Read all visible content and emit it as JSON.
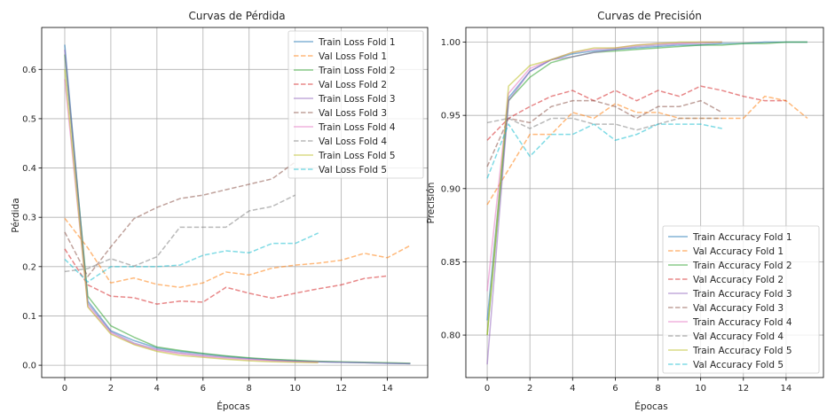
{
  "chart_data": [
    {
      "type": "line",
      "title": "Curvas de Pérdida",
      "xlabel": "Épocas",
      "ylabel": "Pérdida",
      "xlim": [
        -1,
        15.75
      ],
      "ylim": [
        -0.025,
        0.685
      ],
      "xticks": [
        0,
        2,
        4,
        6,
        8,
        10,
        12,
        14
      ],
      "yticks": [
        0.0,
        0.1,
        0.2,
        0.3,
        0.4,
        0.5,
        0.6
      ],
      "ytick_labels": [
        "0.0",
        "0.1",
        "0.2",
        "0.3",
        "0.4",
        "0.5",
        "0.6"
      ],
      "grid": true,
      "legend": "top-right",
      "series": [
        {
          "name": "Train Loss Fold 1",
          "color": "#1f77b4",
          "dash": "solid",
          "x": [
            0,
            1,
            2,
            3,
            4,
            5,
            6,
            7,
            8,
            9,
            10,
            11,
            12,
            13,
            14,
            15
          ],
          "y": [
            0.65,
            0.13,
            0.07,
            0.05,
            0.035,
            0.028,
            0.023,
            0.018,
            0.014,
            0.011,
            0.009,
            0.007,
            0.006,
            0.005,
            0.004,
            0.003
          ]
        },
        {
          "name": "Val Loss Fold 1",
          "color": "#ff7f0e",
          "dash": "dashed",
          "x": [
            0,
            1,
            2,
            3,
            4,
            5,
            6,
            7,
            8,
            9,
            10,
            11,
            12,
            13,
            14,
            15
          ],
          "y": [
            0.298,
            0.238,
            0.167,
            0.177,
            0.164,
            0.158,
            0.167,
            0.189,
            0.183,
            0.197,
            0.203,
            0.207,
            0.213,
            0.227,
            0.218,
            0.243
          ]
        },
        {
          "name": "Train Loss Fold 2",
          "color": "#2ca02c",
          "dash": "solid",
          "x": [
            0,
            1,
            2,
            3,
            4,
            5,
            6,
            7,
            8,
            9,
            10,
            11,
            12,
            13,
            14,
            15
          ],
          "y": [
            0.63,
            0.14,
            0.08,
            0.057,
            0.037,
            0.03,
            0.024,
            0.019,
            0.015,
            0.012,
            0.01,
            0.008,
            0.007,
            0.006,
            0.005,
            0.004
          ]
        },
        {
          "name": "Val Loss Fold 2",
          "color": "#d62728",
          "dash": "dashed",
          "x": [
            0,
            1,
            2,
            3,
            4,
            5,
            6,
            7,
            8,
            9,
            10,
            11,
            12,
            13,
            14
          ],
          "y": [
            0.236,
            0.163,
            0.14,
            0.137,
            0.124,
            0.13,
            0.128,
            0.158,
            0.146,
            0.136,
            0.146,
            0.155,
            0.163,
            0.176,
            0.181
          ]
        },
        {
          "name": "Train Loss Fold 3",
          "color": "#9467bd",
          "dash": "solid",
          "x": [
            0,
            1,
            2,
            3,
            4,
            5,
            6,
            7,
            8,
            9,
            10,
            11,
            12,
            13,
            14,
            15
          ],
          "y": [
            0.64,
            0.125,
            0.068,
            0.045,
            0.032,
            0.025,
            0.02,
            0.016,
            0.013,
            0.01,
            0.008,
            0.007,
            0.006,
            0.005,
            0.004,
            0.003
          ]
        },
        {
          "name": "Val Loss Fold 3",
          "color": "#8c564b",
          "dash": "dashed",
          "x": [
            0,
            1,
            2,
            3,
            4,
            5,
            6,
            7,
            8,
            9,
            10
          ],
          "y": [
            0.27,
            0.18,
            0.24,
            0.297,
            0.32,
            0.338,
            0.345,
            0.356,
            0.367,
            0.378,
            0.412
          ]
        },
        {
          "name": "Train Loss Fold 4",
          "color": "#e377c2",
          "dash": "solid",
          "x": [
            0,
            1,
            2,
            3,
            4,
            5,
            6,
            7,
            8,
            9,
            10,
            11
          ],
          "y": [
            0.58,
            0.12,
            0.065,
            0.043,
            0.03,
            0.023,
            0.018,
            0.014,
            0.011,
            0.009,
            0.007,
            0.006
          ]
        },
        {
          "name": "Val Loss Fold 4",
          "color": "#7f7f7f",
          "dash": "dashed",
          "x": [
            0,
            1,
            2,
            3,
            4,
            5,
            6,
            7,
            8,
            9,
            10
          ],
          "y": [
            0.19,
            0.196,
            0.216,
            0.201,
            0.22,
            0.28,
            0.28,
            0.28,
            0.313,
            0.322,
            0.345
          ]
        },
        {
          "name": "Train Loss Fold 5",
          "color": "#bcbd22",
          "dash": "solid",
          "x": [
            0,
            1,
            2,
            3,
            4,
            5,
            6,
            7,
            8,
            9,
            10,
            11
          ],
          "y": [
            0.6,
            0.118,
            0.063,
            0.042,
            0.028,
            0.02,
            0.016,
            0.012,
            0.009,
            0.007,
            0.006,
            0.005
          ]
        },
        {
          "name": "Val Loss Fold 5",
          "color": "#17becf",
          "dash": "dashed",
          "x": [
            0,
            1,
            2,
            3,
            4,
            5,
            6,
            7,
            8,
            9,
            10,
            11
          ],
          "y": [
            0.215,
            0.169,
            0.2,
            0.2,
            0.2,
            0.203,
            0.223,
            0.232,
            0.228,
            0.247,
            0.247,
            0.268
          ]
        }
      ]
    },
    {
      "type": "line",
      "title": "Curvas de Precisión",
      "xlabel": "Épocas",
      "ylabel": "Precisión",
      "xlim": [
        -1,
        15.75
      ],
      "ylim": [
        0.771,
        1.01
      ],
      "xticks": [
        0,
        2,
        4,
        6,
        8,
        10,
        12,
        14
      ],
      "yticks": [
        0.8,
        0.85,
        0.9,
        0.95,
        1.0
      ],
      "ytick_labels": [
        "0.80",
        "0.85",
        "0.90",
        "0.95",
        "1.00"
      ],
      "grid": true,
      "legend": "bottom-right",
      "series": [
        {
          "name": "Train Accuracy Fold 1",
          "color": "#1f77b4",
          "dash": "solid",
          "x": [
            0,
            1,
            2,
            3,
            4,
            5,
            6,
            7,
            8,
            9,
            10,
            11,
            12,
            13,
            14,
            15
          ],
          "y": [
            0.81,
            0.962,
            0.98,
            0.988,
            0.992,
            0.994,
            0.995,
            0.996,
            0.997,
            0.998,
            0.998,
            0.999,
            0.999,
            1.0,
            1.0,
            1.0
          ]
        },
        {
          "name": "Val Accuracy Fold 1",
          "color": "#ff7f0e",
          "dash": "dashed",
          "x": [
            0,
            1,
            2,
            3,
            4,
            5,
            6,
            7,
            8,
            9,
            10,
            11,
            12,
            13,
            14,
            15
          ],
          "y": [
            0.889,
            0.913,
            0.937,
            0.937,
            0.952,
            0.948,
            0.958,
            0.952,
            0.952,
            0.948,
            0.948,
            0.948,
            0.948,
            0.963,
            0.96,
            0.948
          ]
        },
        {
          "name": "Train Accuracy Fold 2",
          "color": "#2ca02c",
          "dash": "solid",
          "x": [
            0,
            1,
            2,
            3,
            4,
            5,
            6,
            7,
            8,
            9,
            10,
            11,
            12,
            13,
            14,
            15
          ],
          "y": [
            0.8,
            0.96,
            0.976,
            0.986,
            0.99,
            0.993,
            0.994,
            0.995,
            0.996,
            0.997,
            0.998,
            0.998,
            0.999,
            0.999,
            1.0,
            1.0
          ]
        },
        {
          "name": "Val Accuracy Fold 2",
          "color": "#d62728",
          "dash": "dashed",
          "x": [
            0,
            1,
            2,
            3,
            4,
            5,
            6,
            7,
            8,
            9,
            10,
            11,
            12,
            13,
            14
          ],
          "y": [
            0.933,
            0.948,
            0.956,
            0.963,
            0.967,
            0.96,
            0.967,
            0.96,
            0.967,
            0.963,
            0.97,
            0.967,
            0.963,
            0.96,
            0.96
          ]
        },
        {
          "name": "Train Accuracy Fold 3",
          "color": "#9467bd",
          "dash": "solid",
          "x": [
            0,
            1,
            2,
            3,
            4,
            5,
            6,
            7,
            8,
            9,
            10,
            11
          ],
          "y": [
            0.78,
            0.96,
            0.98,
            0.988,
            0.99,
            0.993,
            0.995,
            0.997,
            0.998,
            0.999,
            0.999,
            1.0
          ]
        },
        {
          "name": "Val Accuracy Fold 3",
          "color": "#8c564b",
          "dash": "dashed",
          "x": [
            0,
            1,
            2,
            3,
            4,
            5,
            6,
            7,
            8,
            9,
            10,
            11
          ],
          "y": [
            0.915,
            0.948,
            0.945,
            0.956,
            0.96,
            0.96,
            0.956,
            0.948,
            0.956,
            0.956,
            0.96,
            0.952
          ]
        },
        {
          "name": "Train Accuracy Fold 4",
          "color": "#e377c2",
          "dash": "solid",
          "x": [
            0,
            1,
            2,
            3,
            4,
            5,
            6,
            7,
            8,
            9,
            10,
            11
          ],
          "y": [
            0.83,
            0.965,
            0.982,
            0.988,
            0.993,
            0.995,
            0.996,
            0.998,
            0.999,
            0.999,
            1.0,
            1.0
          ]
        },
        {
          "name": "Val Accuracy Fold 4",
          "color": "#7f7f7f",
          "dash": "dashed",
          "x": [
            0,
            1,
            2,
            3,
            4,
            5,
            6,
            7,
            8,
            9,
            10,
            11
          ],
          "y": [
            0.945,
            0.948,
            0.941,
            0.948,
            0.948,
            0.944,
            0.944,
            0.94,
            0.944,
            0.948,
            0.948,
            0.948
          ]
        },
        {
          "name": "Train Accuracy Fold 5",
          "color": "#bcbd22",
          "dash": "solid",
          "x": [
            0,
            1,
            2,
            3,
            4,
            5,
            6,
            7,
            8,
            9,
            10,
            11
          ],
          "y": [
            0.8,
            0.97,
            0.984,
            0.988,
            0.993,
            0.996,
            0.996,
            0.998,
            0.999,
            1.0,
            1.0,
            1.0
          ]
        },
        {
          "name": "Val Accuracy Fold 5",
          "color": "#17becf",
          "dash": "dashed",
          "x": [
            0,
            1,
            2,
            3,
            4,
            5,
            6,
            7,
            8,
            9,
            10,
            11
          ],
          "y": [
            0.907,
            0.944,
            0.922,
            0.937,
            0.937,
            0.944,
            0.933,
            0.937,
            0.944,
            0.944,
            0.944,
            0.941
          ]
        }
      ]
    }
  ]
}
